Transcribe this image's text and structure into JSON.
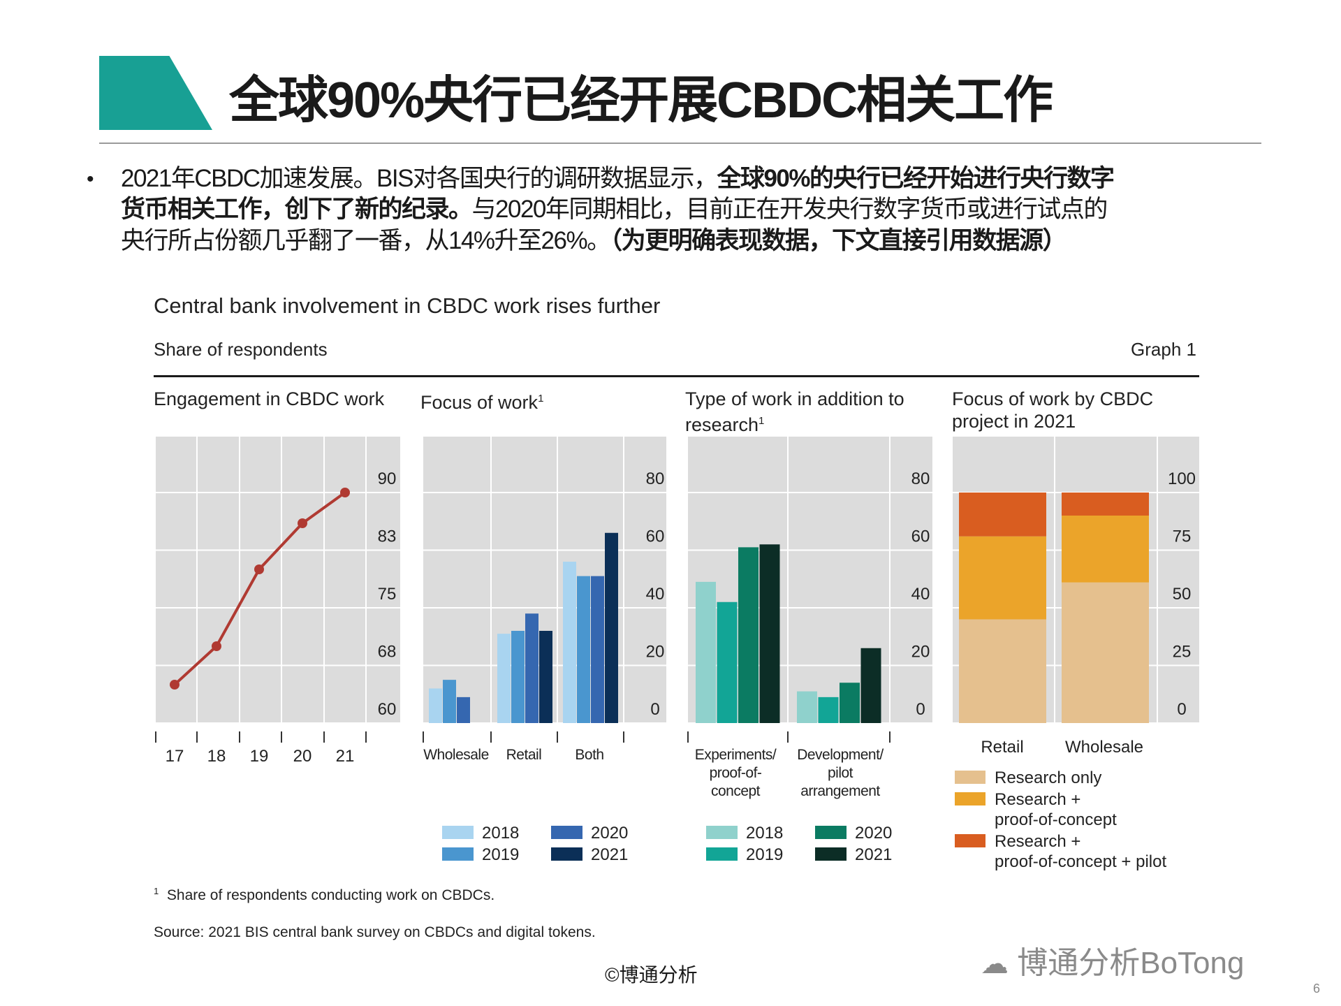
{
  "header": {
    "title": "全球90%央行已经开展CBDC相关工作",
    "accent_color": "#18a094"
  },
  "bullet": {
    "line1_normal": "2021年CBDC加速发展。BIS对各国央行的调研数据显示，",
    "line1_bold": "全球90%的央行已经开始进行央行数字",
    "line2_bold": "货币相关工作，创下了新的纪录。",
    "line2_normal": "与2020年同期相比，目前正在开发央行数字货币或进行试点的",
    "line3_normal": "央行所占份额几乎翻了一番，从14%升至26%。",
    "line3_bold": "（为更明确表现数据，下文直接引用数据源）"
  },
  "graph": {
    "title": "Central bank involvement in CBDC work rises further",
    "subtitle": "Share of respondents",
    "graph_label": "Graph 1",
    "footnote_mark": "1",
    "footnote": "Share of respondents conducting work on CBDCs.",
    "source": "Source: 2021 BIS central bank survey on CBDCs and digital tokens."
  },
  "chart_data": [
    {
      "type": "line",
      "title": "Engagement in CBDC work",
      "categories": [
        "17",
        "18",
        "19",
        "20",
        "21"
      ],
      "values": [
        65,
        70,
        80,
        86,
        90
      ],
      "yticks": [
        "60",
        "68",
        "75",
        "83",
        "90"
      ],
      "ylim": [
        60,
        90
      ],
      "color": "#b03a32",
      "grid": true
    },
    {
      "type": "bar",
      "title": "Focus of work",
      "title_sup": "1",
      "categories": [
        "Wholesale",
        "Retail",
        "Both"
      ],
      "series": [
        {
          "name": "2018",
          "values": [
            12,
            31,
            56
          ],
          "color": "#a9d4f0"
        },
        {
          "name": "2019",
          "values": [
            15,
            32,
            51
          ],
          "color": "#4a96cf"
        },
        {
          "name": "2020",
          "values": [
            9,
            38,
            51
          ],
          "color": "#3567b0"
        },
        {
          "name": "2021",
          "values": [
            null,
            32,
            66
          ],
          "color": "#0b2f57"
        }
      ],
      "yticks": [
        "0",
        "20",
        "40",
        "60",
        "80"
      ],
      "ylim": [
        0,
        80
      ],
      "grid": true,
      "legend": "bottom"
    },
    {
      "type": "bar",
      "title_line1": "Type of work in addition to",
      "title_line2": "research",
      "title_sup": "1",
      "categories": [
        [
          "Experiments/",
          "proof-of-",
          "concept"
        ],
        [
          "Development/",
          "pilot",
          "arrangement"
        ]
      ],
      "series": [
        {
          "name": "2018",
          "values": [
            49,
            11
          ],
          "color": "#8fd1cc"
        },
        {
          "name": "2019",
          "values": [
            42,
            9
          ],
          "color": "#12a596"
        },
        {
          "name": "2020",
          "values": [
            61,
            14
          ],
          "color": "#0b7b62"
        },
        {
          "name": "2021",
          "values": [
            62,
            26
          ],
          "color": "#0c2d26"
        }
      ],
      "yticks": [
        "0",
        "20",
        "40",
        "60",
        "80"
      ],
      "ylim": [
        0,
        80
      ],
      "grid": true,
      "legend": "bottom"
    },
    {
      "type": "bar",
      "stacked": true,
      "title_line1": "Focus of work by CBDC",
      "title_line2": "project in 2021",
      "categories": [
        "Retail",
        "Wholesale"
      ],
      "series": [
        {
          "name": "Research only",
          "values": [
            45,
            61
          ],
          "color": "#e5c08e"
        },
        {
          "name": "Research + proof-of-concept",
          "label_lines": [
            "Research +",
            "proof-of-concept"
          ],
          "values": [
            36,
            29
          ],
          "color": "#eba42a"
        },
        {
          "name": "Research + proof-of-concept + pilot",
          "label_lines": [
            "Research +",
            "proof-of-concept + pilot"
          ],
          "values": [
            19,
            10
          ],
          "color": "#d95d20"
        }
      ],
      "yticks": [
        "0",
        "25",
        "50",
        "75",
        "100"
      ],
      "ylim": [
        0,
        100
      ],
      "grid": true,
      "legend": "bottom"
    }
  ],
  "footer": {
    "credit": "©博通分析",
    "brand": "博通分析BoTong",
    "page": "6"
  }
}
